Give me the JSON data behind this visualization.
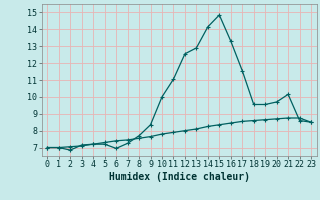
{
  "xlabel": "Humidex (Indice chaleur)",
  "bg_color": "#c8eaea",
  "grid_color": "#e8b4b4",
  "line_color": "#006060",
  "xlim": [
    -0.5,
    23.5
  ],
  "ylim": [
    6.5,
    15.5
  ],
  "xticks": [
    0,
    1,
    2,
    3,
    4,
    5,
    6,
    7,
    8,
    9,
    10,
    11,
    12,
    13,
    14,
    15,
    16,
    17,
    18,
    19,
    20,
    21,
    22,
    23
  ],
  "yticks": [
    7,
    8,
    9,
    10,
    11,
    12,
    13,
    14,
    15
  ],
  "series1_x": [
    0,
    1,
    2,
    3,
    4,
    5,
    6,
    7,
    8,
    9,
    10,
    11,
    12,
    13,
    14,
    15,
    16,
    17,
    18,
    19,
    20,
    21,
    22,
    23
  ],
  "series1_y": [
    7.0,
    7.0,
    6.85,
    7.15,
    7.2,
    7.2,
    6.95,
    7.25,
    7.7,
    8.35,
    10.0,
    11.05,
    12.55,
    12.9,
    14.15,
    14.85,
    13.3,
    11.55,
    9.55,
    9.55,
    9.7,
    10.15,
    8.6,
    8.5
  ],
  "series2_x": [
    0,
    1,
    2,
    3,
    4,
    5,
    6,
    7,
    8,
    9,
    10,
    11,
    12,
    13,
    14,
    15,
    16,
    17,
    18,
    19,
    20,
    21,
    22,
    23
  ],
  "series2_y": [
    7.0,
    7.0,
    7.05,
    7.1,
    7.2,
    7.3,
    7.4,
    7.45,
    7.55,
    7.65,
    7.8,
    7.9,
    8.0,
    8.1,
    8.25,
    8.35,
    8.45,
    8.55,
    8.6,
    8.65,
    8.7,
    8.75,
    8.75,
    8.5
  ],
  "xlabel_fontsize": 7,
  "tick_fontsize": 6
}
